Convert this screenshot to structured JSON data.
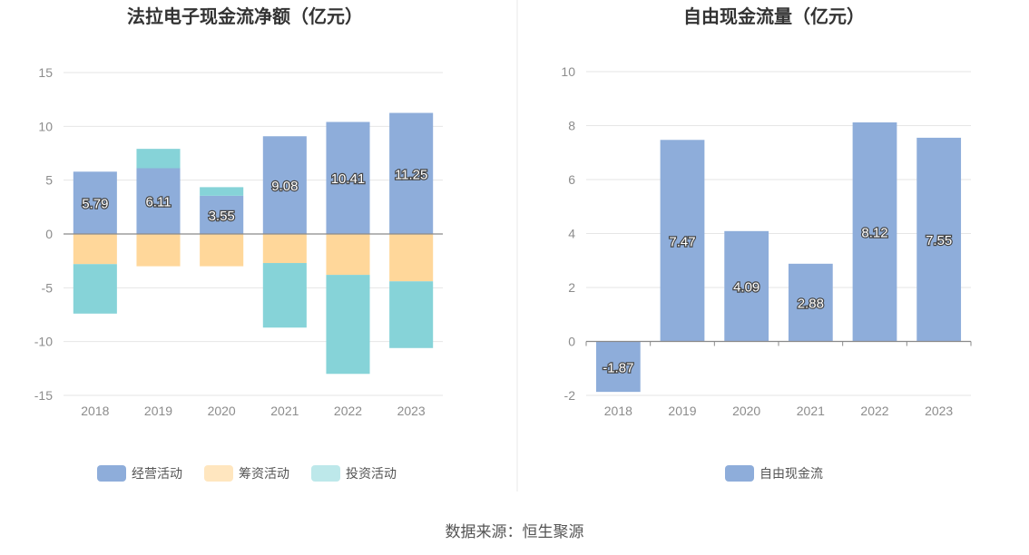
{
  "source": "数据来源：恒生聚源",
  "colors": {
    "operating": "#8eadda",
    "financing": "#ffd79a",
    "investing": "#86d3d8",
    "fcf": "#8eadda",
    "legend_financing": "#ffe6bf",
    "legend_investing": "#bde8ea",
    "grid": "#e6e6e6",
    "axis": "#8a8a8a"
  },
  "chart_data": [
    {
      "type": "bar",
      "stacked": true,
      "title": "法拉电子现金流净额（亿元）",
      "categories": [
        "2018",
        "2019",
        "2020",
        "2021",
        "2022",
        "2023"
      ],
      "ylim": [
        -15,
        15
      ],
      "yticks": [
        15,
        10,
        5,
        0,
        -5,
        -10,
        -15
      ],
      "grid": true,
      "legend_position": "bottom",
      "series": [
        {
          "name": "经营活动",
          "key": "operating",
          "values": [
            5.79,
            6.11,
            3.55,
            9.08,
            10.41,
            11.25
          ],
          "show_labels": true
        },
        {
          "name": "筹资活动",
          "key": "financing",
          "values": [
            -2.8,
            -3.0,
            -3.0,
            -2.7,
            -3.8,
            -4.4
          ],
          "show_labels": false
        },
        {
          "name": "投资活动",
          "key": "investing",
          "values": [
            -4.6,
            1.8,
            0.8,
            -6.0,
            -9.2,
            -6.2
          ],
          "show_labels": false
        }
      ],
      "labels": [
        "5.79",
        "6.11",
        "3.55",
        "9.08",
        "10.41",
        "11.25"
      ]
    },
    {
      "type": "bar",
      "title": "自由现金流量（亿元）",
      "categories": [
        "2018",
        "2019",
        "2020",
        "2021",
        "2022",
        "2023"
      ],
      "ylim": [
        -2,
        10
      ],
      "yticks": [
        10,
        8,
        6,
        4,
        2,
        0,
        -2
      ],
      "grid": true,
      "legend_position": "bottom",
      "series": [
        {
          "name": "自由现金流",
          "key": "fcf",
          "values": [
            -1.87,
            7.47,
            4.09,
            2.88,
            8.12,
            7.55
          ],
          "show_labels": true
        }
      ],
      "labels": [
        "-1.87",
        "7.47",
        "4.09",
        "2.88",
        "8.12",
        "7.55"
      ]
    }
  ]
}
